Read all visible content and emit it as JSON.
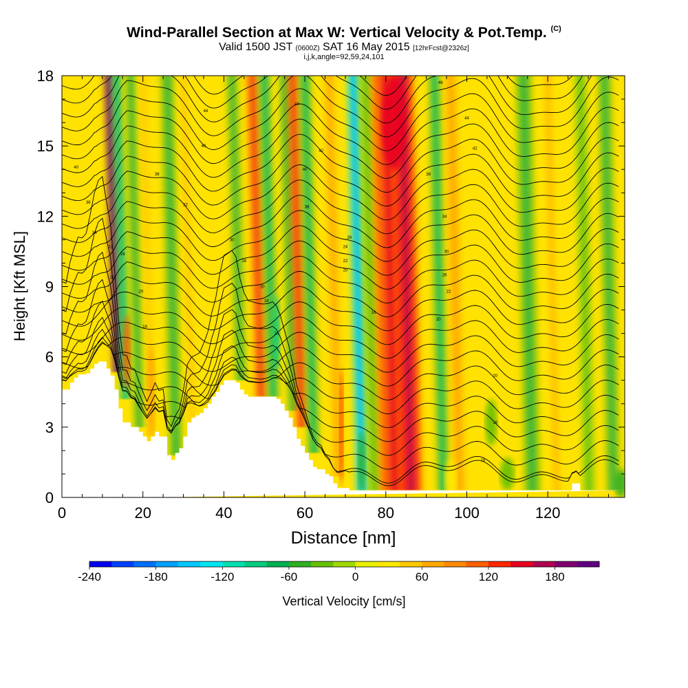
{
  "header": {
    "title": "Wind-Parallel Section at Max W: Vertical Velocity & Pot.Temp.",
    "title_mark": "(C)",
    "valid_prefix": "Valid 1500 JST",
    "valid_zulu": "(0600Z)",
    "valid_date": "SAT 16 May 2015",
    "fcst": "[12hrFcst@2326z]",
    "params": "i,j,k,angle=92,59,24,101"
  },
  "chart_data": {
    "type": "heatmap",
    "xlabel": "Distance [nm]",
    "ylabel": "Height [Kft MSL]",
    "xlim": [
      0,
      139
    ],
    "ylim": [
      0,
      18
    ],
    "x_ticks": [
      0,
      20,
      40,
      60,
      80,
      100,
      120
    ],
    "y_ticks": [
      0,
      3,
      6,
      9,
      12,
      15,
      18
    ],
    "colorbar": {
      "label": "Vertical Velocity [cm/s]",
      "range": [
        -240,
        220
      ],
      "step": 20,
      "tick_values": [
        -240,
        -180,
        -120,
        -60,
        0,
        60,
        120,
        180
      ],
      "colors": [
        "#0000ee",
        "#0040ff",
        "#0070ff",
        "#00a0ff",
        "#00c8ff",
        "#00e6f0",
        "#00e0b0",
        "#00cc80",
        "#00b050",
        "#30b020",
        "#66c000",
        "#a0d800",
        "#e8f000",
        "#ffe800",
        "#ffc800",
        "#ffa800",
        "#ff8800",
        "#ff6000",
        "#ff2800",
        "#e80020",
        "#b00050",
        "#800070",
        "#600080"
      ]
    },
    "series": [
      {
        "type": "velocity_columns",
        "columns": [
          {
            "x": 11.5,
            "w": 0.9,
            "value": 200
          },
          {
            "x": 13.5,
            "w": 1.0,
            "value": -80
          },
          {
            "x": 17,
            "w": 1.2,
            "value": -40
          },
          {
            "x": 20,
            "w": 1.2,
            "value": 30
          },
          {
            "x": 26,
            "w": 1.5,
            "value": -40
          },
          {
            "x": 30,
            "w": 1.3,
            "value": 30
          },
          {
            "x": 42,
            "w": 1.2,
            "value": -40
          },
          {
            "x": 47,
            "w": 1.2,
            "value": 100
          },
          {
            "x": 50,
            "w": 1.2,
            "value": -60
          },
          {
            "x": 55,
            "w": 1.2,
            "value": -40
          },
          {
            "x": 57,
            "w": 1.2,
            "value": 110
          },
          {
            "x": 60,
            "w": 1.2,
            "value": -60
          },
          {
            "x": 66,
            "w": 1.2,
            "value": 50
          },
          {
            "x": 72,
            "w": 1.4,
            "value": -130
          },
          {
            "x": 75,
            "w": 1.5,
            "value": -20
          },
          {
            "x": 80,
            "w": 3.5,
            "value": 100
          },
          {
            "x": 84,
            "w": 2.5,
            "value": 120
          },
          {
            "x": 92,
            "w": 1.2,
            "value": -50
          },
          {
            "x": 96,
            "w": 1.5,
            "value": 40
          },
          {
            "x": 114,
            "w": 1.8,
            "value": -30
          },
          {
            "x": 120,
            "w": 2.0,
            "value": 30
          },
          {
            "x": 128,
            "w": 1.5,
            "value": -20
          },
          {
            "x": 134,
            "w": 1.5,
            "value": -40
          }
        ]
      },
      {
        "type": "blobs",
        "items": [
          {
            "x": 16,
            "y": 6.2,
            "rx": 0.9,
            "ry": 1.6,
            "value": 100
          },
          {
            "x": 22,
            "y": 4.5,
            "rx": 1.0,
            "ry": 2.0,
            "value": 60
          },
          {
            "x": 53,
            "y": 7.0,
            "rx": 0.8,
            "ry": 1.6,
            "value": -90
          },
          {
            "x": 69,
            "y": 3.0,
            "rx": 0.5,
            "ry": 2.5,
            "value": 130
          },
          {
            "x": 74,
            "y": 1.5,
            "rx": 0.9,
            "ry": 1.3,
            "value": -50
          },
          {
            "x": 82,
            "y": 16.0,
            "rx": 3.0,
            "ry": 2.0,
            "value": 150
          },
          {
            "x": 106,
            "y": 3.2,
            "rx": 1.5,
            "ry": 1.0,
            "value": -40
          },
          {
            "x": 96,
            "y": 0.8,
            "rx": 1.5,
            "ry": 0.8,
            "value": 30
          },
          {
            "x": 110,
            "y": 1.0,
            "rx": 1.8,
            "ry": 0.7,
            "value": -30
          },
          {
            "x": 138,
            "y": 0.6,
            "rx": 1.5,
            "ry": 0.6,
            "value": -60
          }
        ]
      },
      {
        "type": "terrain_heights_kft",
        "x": [
          0,
          1,
          2,
          3,
          4,
          5,
          6,
          7,
          8,
          9,
          10,
          11,
          12,
          13,
          14,
          15,
          16,
          17,
          18,
          19,
          20,
          21,
          22,
          23,
          24,
          25,
          26,
          27,
          28,
          29,
          30,
          31,
          32,
          33,
          34,
          35,
          36,
          37,
          38,
          39,
          40,
          41,
          42,
          43,
          44,
          45,
          46,
          47,
          48,
          49,
          50,
          51,
          52,
          53,
          54,
          55,
          56,
          57,
          58,
          59,
          60,
          61,
          62,
          63,
          64,
          65,
          66,
          67,
          68,
          69,
          70,
          71,
          72,
          73,
          74,
          75,
          76,
          77,
          78,
          79,
          80,
          81,
          82,
          83,
          84,
          85,
          86,
          87,
          88,
          89,
          90,
          91,
          92,
          93,
          94,
          95,
          96,
          97,
          98,
          99,
          100,
          101,
          102,
          103,
          104,
          105,
          106,
          107,
          108,
          109,
          110,
          111,
          112,
          113,
          114,
          115,
          116,
          117,
          118,
          119,
          120,
          121,
          122,
          123,
          124,
          125,
          126,
          127,
          128,
          129,
          130,
          131,
          132,
          133,
          134,
          135,
          136,
          137,
          138,
          139
        ],
        "h": [
          4.6,
          4.6,
          4.9,
          5.1,
          5.25,
          5.25,
          5.3,
          5.5,
          5.7,
          5.8,
          5.8,
          5.5,
          5.2,
          4.6,
          3.8,
          3.2,
          3.2,
          3.0,
          3.0,
          2.8,
          2.6,
          2.4,
          2.6,
          2.8,
          2.6,
          2.6,
          1.8,
          1.6,
          1.9,
          2.1,
          2.6,
          3.2,
          3.4,
          3.5,
          3.6,
          3.8,
          4.0,
          4.3,
          4.5,
          4.8,
          5.0,
          5.0,
          5.0,
          4.9,
          4.6,
          4.4,
          4.3,
          4.3,
          4.3,
          4.3,
          4.3,
          4.3,
          4.3,
          4.2,
          4.0,
          3.7,
          3.4,
          3.0,
          2.5,
          2.2,
          1.9,
          1.6,
          1.3,
          1.2,
          1.2,
          1.0,
          0.9,
          0.6,
          0.4,
          0.4,
          0.4,
          0.3,
          0.3,
          0.3,
          0.3,
          0.3,
          0.3,
          0.3,
          0.3,
          0.3,
          0.3,
          0.3,
          0.3,
          0.3,
          0.3,
          0.3,
          0.3,
          0.3,
          0.3,
          0.3,
          0.3,
          0.3,
          0.3,
          0.3,
          0.3,
          0.3,
          0.3,
          0.3,
          0.3,
          0.3,
          0.3,
          0.3,
          0.3,
          0.3,
          0.3,
          0.3,
          0.3,
          0.3,
          0.3,
          0.3,
          0.3,
          0.3,
          0.3,
          0.3,
          0.3,
          0.3,
          0.3,
          0.3,
          0.3,
          0.3,
          0.3,
          0.3,
          0.3,
          0.3,
          0.3,
          0.3,
          0.6,
          0.6,
          0.3,
          0.3,
          0.3,
          0.3,
          0.3,
          0.3,
          0.3,
          0.3,
          0.3,
          0.3,
          0.3
        ]
      }
    ],
    "isentropes": {
      "label": "Pot.Temp. (C)",
      "count": 30,
      "sample_labels": [
        {
          "x": 35.5,
          "y": 16.5,
          "text": "44"
        },
        {
          "x": 58,
          "y": 16.8,
          "text": "44"
        },
        {
          "x": 93.5,
          "y": 17.7,
          "text": "46"
        },
        {
          "x": 100,
          "y": 16.2,
          "text": "44"
        },
        {
          "x": 35,
          "y": 15.0,
          "text": "40"
        },
        {
          "x": 64,
          "y": 14.8,
          "text": "42"
        },
        {
          "x": 102,
          "y": 14.9,
          "text": "42"
        },
        {
          "x": 23.5,
          "y": 13.8,
          "text": "36"
        },
        {
          "x": 60,
          "y": 14.0,
          "text": "40"
        },
        {
          "x": 90.5,
          "y": 13.8,
          "text": "38"
        },
        {
          "x": 3.5,
          "y": 14.1,
          "text": "40"
        },
        {
          "x": 6.5,
          "y": 12.6,
          "text": "36"
        },
        {
          "x": 30.5,
          "y": 12.5,
          "text": "32"
        },
        {
          "x": 60.5,
          "y": 12.4,
          "text": "38"
        },
        {
          "x": 94.5,
          "y": 12.0,
          "text": "34"
        },
        {
          "x": 8,
          "y": 11.3,
          "text": "34"
        },
        {
          "x": 42,
          "y": 11.0,
          "text": "30"
        },
        {
          "x": 71,
          "y": 11.1,
          "text": "28"
        },
        {
          "x": 12,
          "y": 10.7,
          "text": "32"
        },
        {
          "x": 70,
          "y": 10.7,
          "text": "24"
        },
        {
          "x": 15,
          "y": 10.4,
          "text": "28"
        },
        {
          "x": 95,
          "y": 10.5,
          "text": "30"
        },
        {
          "x": 45,
          "y": 10.1,
          "text": "28"
        },
        {
          "x": 70,
          "y": 10.1,
          "text": "22"
        },
        {
          "x": 70,
          "y": 9.7,
          "text": "20"
        },
        {
          "x": 12.5,
          "y": 9.4,
          "text": "22"
        },
        {
          "x": 94.5,
          "y": 9.5,
          "text": "26"
        },
        {
          "x": 49.5,
          "y": 9.0,
          "text": "20"
        },
        {
          "x": 19.5,
          "y": 8.8,
          "text": "20"
        },
        {
          "x": 95.5,
          "y": 8.8,
          "text": "22"
        },
        {
          "x": 50.5,
          "y": 8.4,
          "text": "18"
        },
        {
          "x": 77,
          "y": 7.9,
          "text": "16"
        },
        {
          "x": 93,
          "y": 7.6,
          "text": "20"
        },
        {
          "x": 20.5,
          "y": 7.3,
          "text": "18"
        },
        {
          "x": 53,
          "y": 7.0,
          "text": "16"
        },
        {
          "x": 107,
          "y": 5.2,
          "text": "20"
        },
        {
          "x": 107,
          "y": 3.2,
          "text": "18"
        },
        {
          "x": 104,
          "y": 1.6,
          "text": "16"
        }
      ]
    }
  }
}
